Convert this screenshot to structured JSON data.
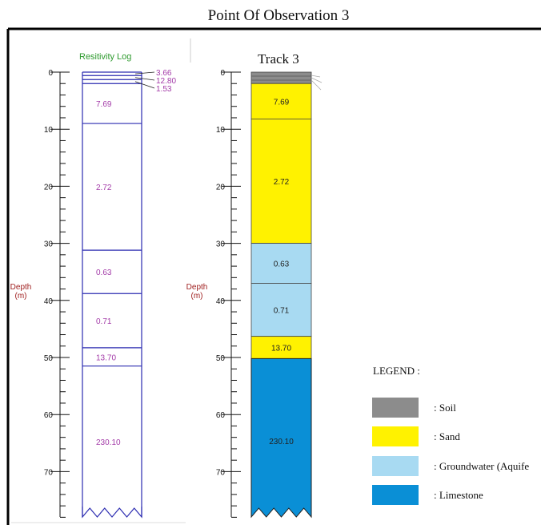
{
  "title": "Point Of Observation 3",
  "resistivity_log": {
    "header": "Resitivity Log",
    "axis_label": [
      "Depth",
      "(m)"
    ],
    "ticks": [
      "0",
      "10",
      "20",
      "30",
      "40",
      "50",
      "60",
      "70"
    ],
    "layers": [
      {
        "top": 0,
        "bottom": 0.6,
        "value": "3.66"
      },
      {
        "top": 0.6,
        "bottom": 1.3,
        "value": "12.80"
      },
      {
        "top": 1.3,
        "bottom": 2.0,
        "value": "1.53"
      },
      {
        "top": 2.0,
        "bottom": 9.0,
        "value": "7.69"
      },
      {
        "top": 9.0,
        "bottom": 31.2,
        "value": "2.72"
      },
      {
        "top": 31.2,
        "bottom": 38.8,
        "value": "0.63"
      },
      {
        "top": 38.8,
        "bottom": 48.3,
        "value": "0.71"
      },
      {
        "top": 48.3,
        "bottom": 51.5,
        "value": "13.70"
      },
      {
        "top": 51.5,
        "bottom": 78.0,
        "value": "230.10"
      }
    ]
  },
  "track": {
    "header": "Track 3",
    "axis_label": [
      "Depth",
      "(m)"
    ],
    "ticks": [
      "0",
      "10",
      "20",
      "30",
      "40",
      "50",
      "60",
      "70"
    ],
    "layers": [
      {
        "top": 0,
        "bottom": 2.0,
        "value": "",
        "material": "soil"
      },
      {
        "top": 2.0,
        "bottom": 8.2,
        "value": "7.69",
        "material": "sand"
      },
      {
        "top": 8.2,
        "bottom": 30.0,
        "value": "2.72",
        "material": "sand"
      },
      {
        "top": 30.0,
        "bottom": 37.0,
        "value": "0.63",
        "material": "groundwater"
      },
      {
        "top": 37.0,
        "bottom": 46.3,
        "value": "0.71",
        "material": "groundwater"
      },
      {
        "top": 46.3,
        "bottom": 50.2,
        "value": "13.70",
        "material": "sand"
      },
      {
        "top": 50.2,
        "bottom": 78.0,
        "value": "230.10",
        "material": "limestone"
      }
    ]
  },
  "legend": {
    "title": "LEGEND :",
    "items": [
      {
        "key": "soil",
        "label": ": Soil",
        "color": "#8c8c8c"
      },
      {
        "key": "sand",
        "label": ": Sand",
        "color": "#fff200"
      },
      {
        "key": "groundwater",
        "label": ": Groundwater (Aquife",
        "color": "#a8daf2"
      },
      {
        "key": "limestone",
        "label": ": Limestone",
        "color": "#0a8fd6"
      }
    ]
  },
  "colors": {
    "log_line": "#2b2bb0",
    "log_text": "#a33ba8",
    "header_green": "#2e9a2e",
    "depth_label": "#a02020"
  }
}
